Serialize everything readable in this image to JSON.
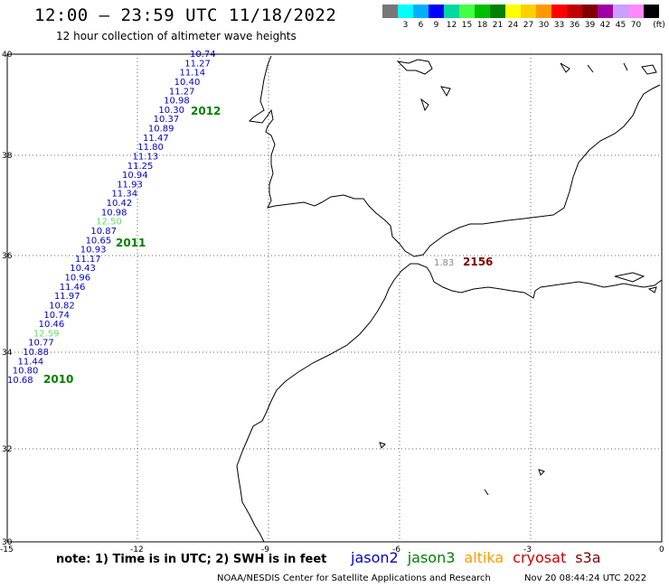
{
  "header": {
    "title": "12:00 – 23:59 UTC 11/18/2022",
    "subtitle": "12 hour collection of altimeter wave heights"
  },
  "scale": {
    "unit": "(ft)",
    "swatches": [
      {
        "color": "#777777",
        "label": ""
      },
      {
        "color": "#00ffff",
        "label": "3"
      },
      {
        "color": "#00b0ff",
        "label": "6"
      },
      {
        "color": "#0000ff",
        "label": "9"
      },
      {
        "color": "#00d8a0",
        "label": "12"
      },
      {
        "color": "#44ff44",
        "label": "15"
      },
      {
        "color": "#00c000",
        "label": "18"
      },
      {
        "color": "#008000",
        "label": "21"
      },
      {
        "color": "#ffff00",
        "label": "24"
      },
      {
        "color": "#ffd000",
        "label": "27"
      },
      {
        "color": "#ff9900",
        "label": "30"
      },
      {
        "color": "#ff0000",
        "label": "33"
      },
      {
        "color": "#c00000",
        "label": "36"
      },
      {
        "color": "#800000",
        "label": "39"
      },
      {
        "color": "#a000a0",
        "label": "42"
      },
      {
        "color": "#c8a0ff",
        "label": "45"
      },
      {
        "color": "#ff88ff",
        "label": "70"
      },
      {
        "color": "#000000",
        "label": ""
      }
    ]
  },
  "axes": {
    "lon_ticks": [
      "-15",
      "-12",
      "-9",
      "-6",
      "-3",
      "0"
    ],
    "lat_ticks": [
      "40",
      "38",
      "36",
      "34",
      "32",
      "30"
    ]
  },
  "track_west": {
    "values": [
      "10.74",
      "11.27",
      "11.14",
      "10.40",
      "11.27",
      "10.98",
      "10.30",
      "10.37",
      "10.89",
      "11.47",
      "11.80",
      "11.13",
      "11.25",
      "10.94",
      "11.93",
      "11.34",
      "10.42",
      "10.98",
      "12.50",
      "10.87",
      "10.65",
      "10.93",
      "11.17",
      "10.43",
      "10.96",
      "11.46",
      "11.97",
      "10.82",
      "10.74",
      "10.46",
      "12.59",
      "10.77",
      "10.88",
      "11.44",
      "10.80",
      "10.68"
    ],
    "colors": [
      "#0000cc",
      "#0000cc",
      "#0000cc",
      "#0000cc",
      "#0000cc",
      "#0000cc",
      "#0000cc",
      "#0000cc",
      "#0000cc",
      "#0000cc",
      "#0000cc",
      "#0000cc",
      "#0000cc",
      "#0000cc",
      "#0000cc",
      "#0000cc",
      "#0000cc",
      "#0000cc",
      "#66dd66",
      "#0000cc",
      "#0000cc",
      "#0000cc",
      "#0000cc",
      "#0000cc",
      "#0000cc",
      "#0000cc",
      "#0000cc",
      "#0000cc",
      "#0000cc",
      "#0000cc",
      "#66dd66",
      "#0000cc",
      "#0000cc",
      "#0000cc",
      "#0000cc",
      "#0000cc"
    ],
    "times": [
      "2012",
      "2011",
      "2010"
    ]
  },
  "track_east": {
    "value": "1.83",
    "time": "2156"
  },
  "legend": {
    "names": [
      {
        "label": "jason2",
        "color": "#0000cc"
      },
      {
        "label": "jason3",
        "color": "#008000"
      },
      {
        "label": "altika",
        "color": "#ff9900"
      },
      {
        "label": "cryosat",
        "color": "#cc0000"
      },
      {
        "label": "s3a",
        "color": "#800000"
      }
    ]
  },
  "footer": {
    "note": "note:  1) Time is in UTC;  2) SWH is in feet",
    "credit": "NOAA/NESDIS Center for Satellite Applications and Research",
    "timestamp": "Nov 20 08:44:24 UTC 2022"
  }
}
